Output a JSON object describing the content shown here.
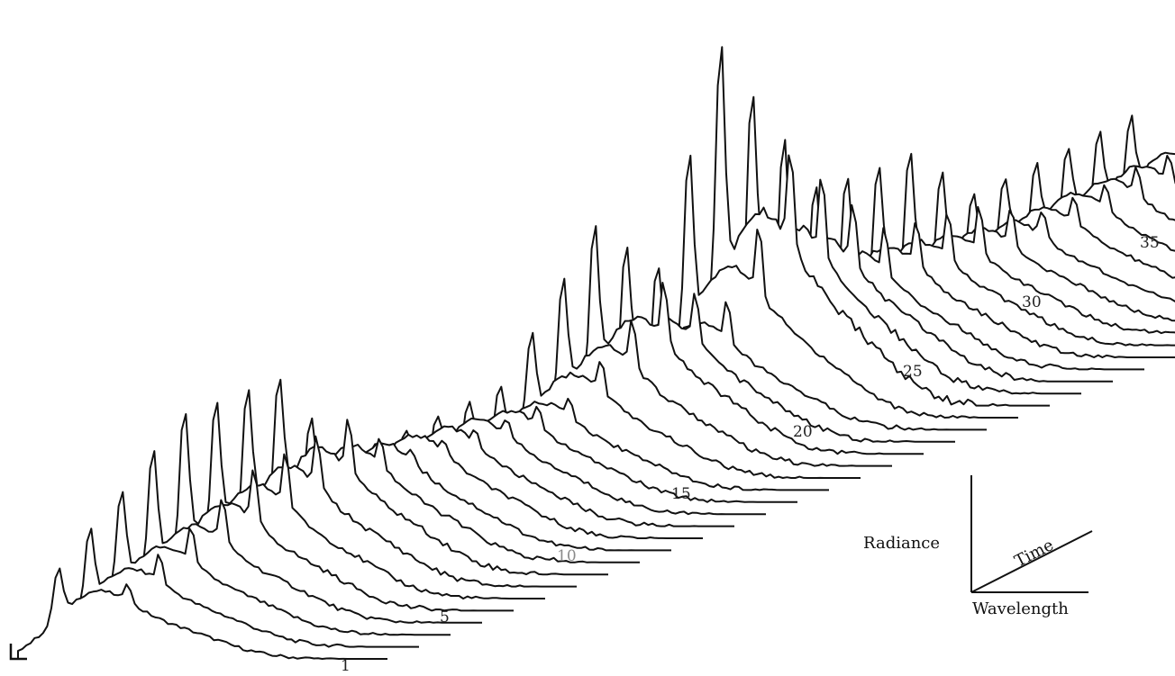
{
  "chart_data": {
    "type": "waterfall-3d-line",
    "title": "",
    "xlabel": "Wavelength",
    "ylabel": "Radiance",
    "zlabel": "Time",
    "traces": 35,
    "time_tick_labels": [
      {
        "value": 1,
        "label": "1"
      },
      {
        "value": 5,
        "label": "5"
      },
      {
        "value": 10,
        "label": "10"
      },
      {
        "value": 15,
        "label": "15"
      },
      {
        "value": 20,
        "label": "20"
      },
      {
        "value": 25,
        "label": "25"
      },
      {
        "value": 30,
        "label": "30"
      },
      {
        "value": 35,
        "label": "35"
      }
    ],
    "radiance_relative_by_time": [
      {
        "time": 1,
        "broadband": 0.35,
        "sharp_peak": 0.2
      },
      {
        "time": 5,
        "broadband": 0.55,
        "sharp_peak": 0.55
      },
      {
        "time": 8,
        "broadband": 0.65,
        "sharp_peak": 0.5
      },
      {
        "time": 10,
        "broadband": 0.55,
        "sharp_peak": 0.1
      },
      {
        "time": 15,
        "broadband": 0.45,
        "sharp_peak": 0.2
      },
      {
        "time": 18,
        "broadband": 0.7,
        "sharp_peak": 0.6
      },
      {
        "time": 20,
        "broadband": 0.55,
        "sharp_peak": 0.4
      },
      {
        "time": 22,
        "broadband": 1.0,
        "sharp_peak": 1.0
      },
      {
        "time": 25,
        "broadband": 0.6,
        "sharp_peak": 0.45
      },
      {
        "time": 28,
        "broadband": 0.5,
        "sharp_peak": 0.5
      },
      {
        "time": 30,
        "broadband": 0.45,
        "sharp_peak": 0.25
      },
      {
        "time": 35,
        "broadband": 0.5,
        "sharp_peak": 0.3
      }
    ],
    "grid": false,
    "legend": "none"
  }
}
